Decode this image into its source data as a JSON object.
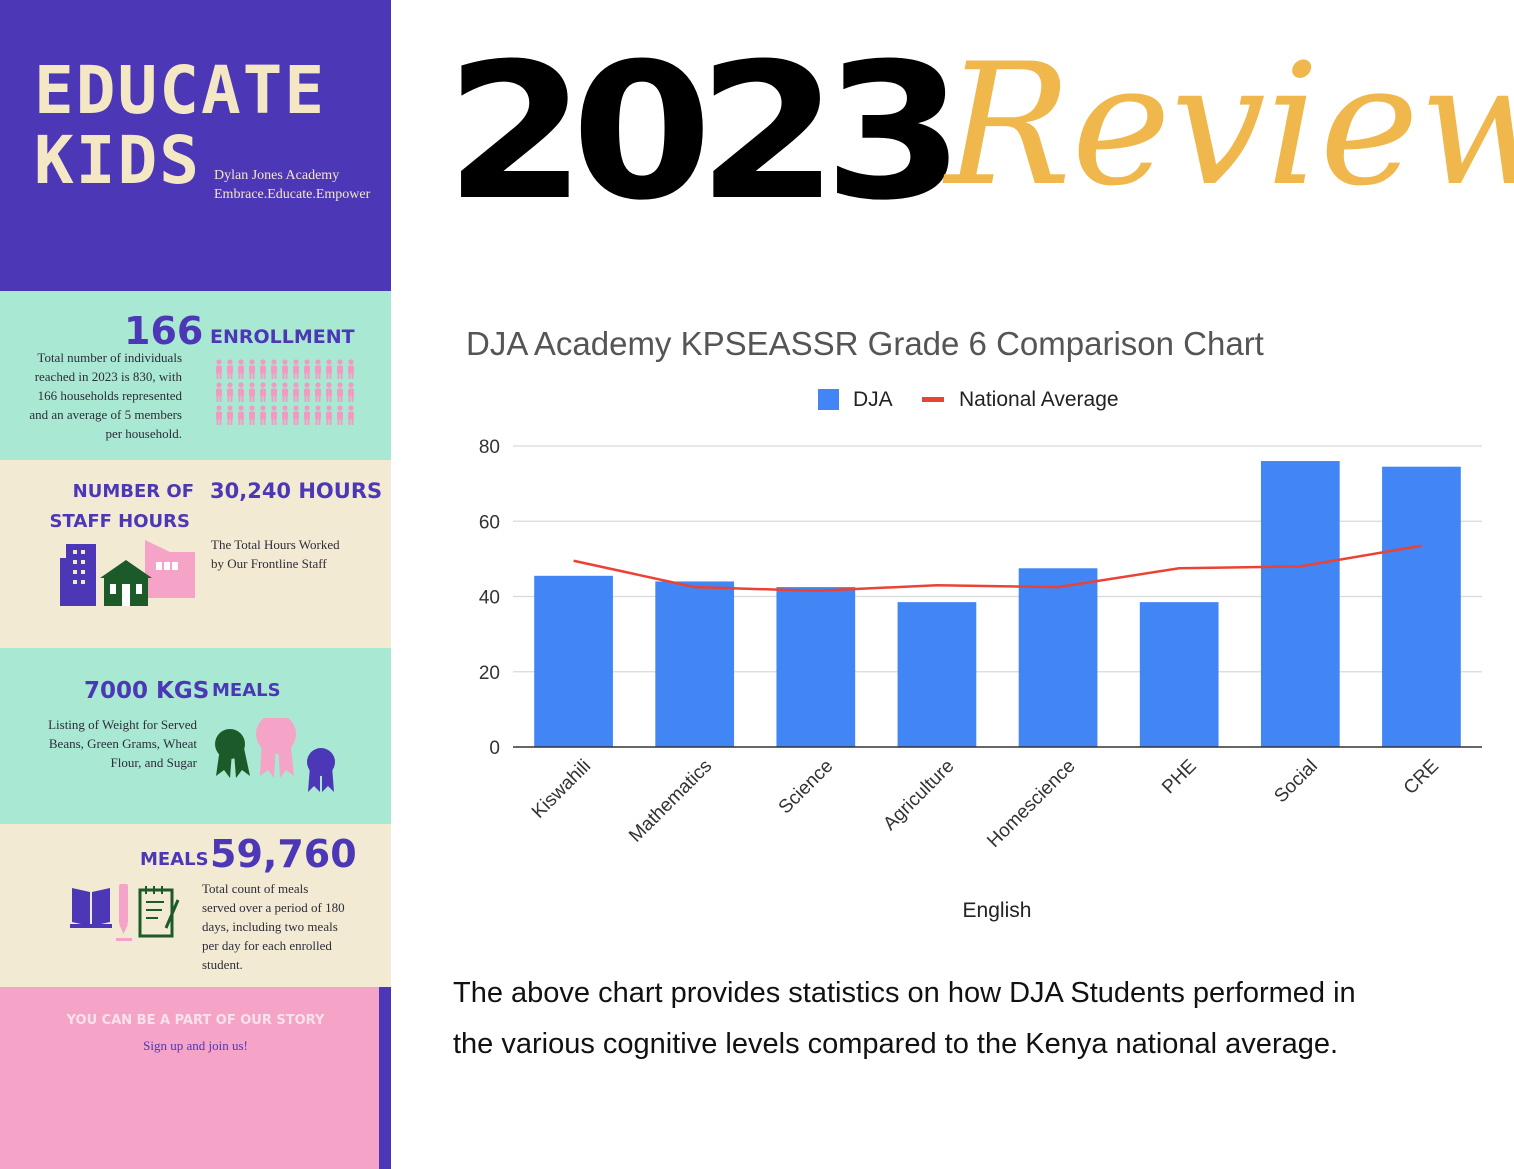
{
  "sidebar": {
    "header": {
      "title_line1": "EDUCATE",
      "title_line2": "KIDS",
      "org": "Dylan Jones Academy",
      "tagline": "Embrace.Educate.Empower"
    },
    "enrollment": {
      "number": "166",
      "label": "ENROLLMENT",
      "description": [
        "Total number of individuals",
        "reached in 2023 is 830, with",
        "166 households represented",
        "and an average of 5 members",
        "per household."
      ]
    },
    "staff": {
      "label_line1": "NUMBER OF",
      "label_line2": "STAFF HOURS",
      "value": "30,240 HOURS",
      "description": [
        "The Total Hours Worked",
        "by Our Frontline Staff"
      ]
    },
    "kgs": {
      "value": "7000 KGS",
      "label": "MEALS",
      "description": [
        "Listing of Weight for Served",
        "Beans, Green Grams, Wheat",
        "Flour, and Sugar"
      ]
    },
    "meals": {
      "label": "MEALS",
      "value": "59,760",
      "description": [
        "Total count of meals",
        "served over a period of 180",
        "days, including two meals",
        "per day for each enrolled",
        "student."
      ]
    },
    "cta": {
      "headline": "YOU CAN BE A PART OF OUR STORY",
      "sub": "Sign up and join us!"
    }
  },
  "header": {
    "year": "2023",
    "word": "Review"
  },
  "chart_data": {
    "type": "bar",
    "title": "DJA Academy KPSEASSR Grade 6 Comparison Chart",
    "xlabel": "English",
    "ylabel": "",
    "categories": [
      "Kiswahili",
      "Mathematics",
      "Science",
      "Agriculture",
      "Homescience",
      "PHE",
      "Social",
      "CRE"
    ],
    "series": [
      {
        "name": "DJA",
        "type": "bar",
        "color": "#4285f4",
        "values": [
          45.5,
          44,
          42.5,
          38.5,
          47.5,
          38.5,
          76,
          74.5
        ]
      },
      {
        "name": "National Average",
        "type": "line",
        "color": "#ea4335",
        "values": [
          49.5,
          42.5,
          41.5,
          43,
          42.5,
          47.5,
          48,
          53.5
        ]
      }
    ],
    "ylim": [
      0,
      80
    ],
    "yticks": [
      0,
      20,
      40,
      60,
      80
    ],
    "grid": true,
    "legend": "top-center"
  },
  "caption": {
    "line1": "The above chart provides statistics on how DJA Students  performed in",
    "line2": "the various cognitive levels compared to the Kenya national average."
  },
  "colors": {
    "purple": "#4c38b6",
    "mint": "#a9e8d3",
    "cream": "#f2ead3",
    "pink": "#f6a3c8",
    "title_cream": "#f4e7c4",
    "gold": "#f0b84c",
    "green": "#1d5a2a"
  }
}
